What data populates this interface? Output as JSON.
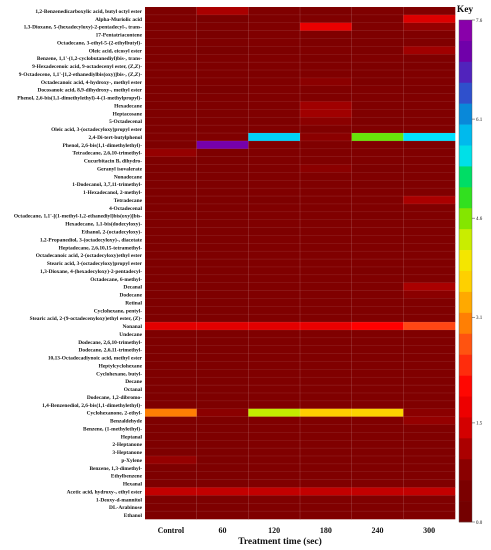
{
  "chart_data": {
    "type": "heatmap",
    "xlabel": "Treatment time (sec)",
    "ylabel": "",
    "legend_title": "Key",
    "legend_placement": "right",
    "scale": {
      "min": 0.0,
      "max": 7.6
    },
    "scale_ticks": [
      "7.6",
      "6.1",
      "4.6",
      "3.1",
      "1.5",
      "0.0"
    ],
    "scale_tick_values": [
      7.6,
      6.1,
      4.6,
      3.1,
      1.5,
      0.0
    ],
    "categories": [
      "Control",
      "60",
      "120",
      "180",
      "240",
      "300"
    ],
    "rows": [
      "1,2-Benzenedicarboxylic acid, butyl octyl ester",
      "Alpha-Muriolic acid",
      "1,3-Dioxane, 5-(hexadecyloxy)-2-pentadecyl-, trans-",
      "17-Pentatriacontene",
      "Octadecane, 3-ethyl-5-(2-ethylbutyl)-",
      "Oleic acid, eicosyl ester",
      "Benzene, 1,1'-(1,2-cyclobutanediyl)bis-, trans-",
      "9-Hexadecenoic acid, 9-octadecenyl ester, (Z,Z)-",
      "9-Octadecene, 1,1'-[1,2-ethanediylbis(oxy)]bis-, (Z,Z)-",
      "Octadecanoic acid, 4-hydroxy-, methyl ester",
      "Docosanoic acid, 8,9-dihydroxy-, methyl ester",
      "Phenol, 2,6-bis(1,1-dimethylethyl)-4-(1-methylpropyl)-",
      "Hexadecane",
      "Heptacosane",
      "5-Octadecenal",
      "Oleic acid, 3-(octadecyloxy)propyl ester",
      "2,4-Di-tert-butylphenol",
      "Phenol, 2,6-bis(1,1-dimethylethyl)-",
      "Tetradecane, 2,6,10-trimethyl-",
      "Cucurbitacin B, dihydro-",
      "Geranyl isovalerate",
      "Nonadecane",
      "1-Dodecanol, 3,7,11-trimethyl-",
      "1-Hexadecanol, 2-methyl-",
      "Tetradecane",
      "4-Octadecenal",
      "Octadecane, 1,1'-[(1-methyl-1,2-ethanediyl)bis(oxy)]bis-",
      "Hexadecane, 1,1-bis(dodecyloxy)-",
      "Ethanol, 2-(octadecyloxy)-",
      "1,2-Propanediol, 3-(octadecyloxy)-, diacetate",
      "Heptadecane, 2,6,10,15-tetramethyl-",
      "Octadecanoic acid, 2-(octadecyloxy)ethyl ester",
      "Stearic acid, 3-(octadecyloxy)propyl ester",
      "1,3-Dioxane, 4-(hexadecyloxy)-2-pentadecyl-",
      "Octadecane, 6-methyl-",
      "Decanal",
      "Dodecane",
      "Retinal",
      "Cyclohexane, pentyl-",
      "Stearic acid, 2-(9-octadecenyloxy)ethyl ester, (Z)-",
      "Nonanal",
      "Undecane",
      "Dodecane, 2,6,10-trimethyl-",
      "Dodecane, 2,6,11-trimethyl-",
      "10,13-Octadecadiynoic acid, methyl ester",
      "Heptylcyclohexane",
      "Cyclohexane, butyl-",
      "Decane",
      "Octanal",
      "Dodecane, 1,2-dibromo-",
      "1,4-Benzenediol, 2,6-bis(1,1-dimethylethyl)-",
      "Cyclohexanone, 2-ethyl-",
      "Benzaldehyde",
      "Benzene, (1-methylethyl)-",
      "Heptanal",
      "2-Heptanone",
      "3-Heptanone",
      "p-Xylene",
      "Benzene, 1,3-dimethyl-",
      "Ethylbenzene",
      "Hexanal",
      "Acetic acid, hydroxy-, ethyl ester",
      "1-Deoxy-d-mannitol",
      "DL-Arabinose",
      "Ethanol"
    ],
    "values": [
      [
        0.6,
        1.1,
        0.7,
        0.6,
        0.7,
        0.7
      ],
      [
        0.6,
        0.5,
        0.6,
        0.7,
        0.6,
        1.5
      ],
      [
        0.6,
        0.6,
        0.7,
        1.7,
        0.7,
        0.9
      ],
      [
        0.6,
        0.5,
        0.7,
        0.7,
        0.6,
        0.7
      ],
      [
        0.6,
        0.6,
        0.7,
        0.6,
        0.6,
        0.7
      ],
      [
        0.6,
        0.5,
        0.6,
        0.7,
        0.6,
        1.0
      ],
      [
        0.6,
        0.6,
        0.7,
        0.6,
        0.7,
        0.6
      ],
      [
        0.6,
        0.6,
        0.7,
        0.7,
        0.6,
        0.6
      ],
      [
        0.6,
        0.6,
        0.6,
        0.7,
        0.6,
        0.7
      ],
      [
        0.6,
        0.6,
        0.7,
        0.8,
        0.6,
        0.7
      ],
      [
        0.6,
        0.5,
        0.7,
        0.7,
        0.7,
        0.6
      ],
      [
        0.6,
        0.6,
        0.7,
        0.7,
        0.7,
        0.7
      ],
      [
        0.6,
        0.6,
        0.7,
        1.0,
        0.7,
        0.7
      ],
      [
        0.6,
        0.6,
        0.7,
        1.0,
        0.7,
        0.7
      ],
      [
        0.6,
        0.6,
        0.6,
        0.8,
        0.6,
        0.7
      ],
      [
        0.6,
        0.6,
        0.7,
        0.7,
        0.7,
        0.7
      ],
      [
        0.7,
        0.7,
        5.7,
        0.8,
        4.7,
        5.6
      ],
      [
        0.6,
        7.2,
        0.7,
        0.7,
        0.7,
        0.6
      ],
      [
        0.9,
        0.6,
        0.7,
        0.7,
        0.7,
        0.7
      ],
      [
        0.6,
        0.6,
        0.7,
        0.7,
        0.7,
        0.7
      ],
      [
        0.6,
        0.6,
        0.7,
        0.8,
        0.6,
        0.7
      ],
      [
        0.6,
        0.6,
        0.7,
        0.7,
        0.7,
        0.7
      ],
      [
        0.6,
        0.6,
        0.7,
        0.7,
        0.6,
        0.7
      ],
      [
        0.6,
        0.6,
        0.7,
        0.7,
        0.7,
        0.7
      ],
      [
        0.6,
        0.6,
        0.6,
        0.7,
        0.7,
        1.1
      ],
      [
        0.6,
        0.6,
        0.7,
        0.7,
        0.7,
        0.7
      ],
      [
        0.6,
        0.6,
        0.7,
        0.7,
        0.6,
        0.7
      ],
      [
        0.6,
        0.6,
        0.7,
        0.7,
        0.7,
        0.7
      ],
      [
        0.6,
        0.6,
        0.6,
        0.7,
        0.7,
        0.7
      ],
      [
        0.6,
        0.6,
        0.7,
        0.7,
        0.7,
        0.7
      ],
      [
        0.6,
        0.6,
        0.7,
        0.7,
        0.7,
        0.7
      ],
      [
        0.6,
        0.6,
        0.7,
        0.7,
        0.7,
        0.7
      ],
      [
        0.6,
        0.6,
        0.7,
        0.7,
        0.7,
        0.7
      ],
      [
        0.6,
        0.6,
        0.7,
        0.7,
        0.6,
        0.7
      ],
      [
        0.6,
        0.6,
        0.7,
        0.7,
        0.7,
        0.7
      ],
      [
        0.6,
        0.6,
        0.7,
        0.7,
        0.7,
        1.1
      ],
      [
        0.6,
        0.6,
        0.7,
        0.7,
        0.7,
        0.8
      ],
      [
        0.6,
        0.6,
        0.7,
        0.7,
        0.7,
        0.7
      ],
      [
        0.6,
        0.6,
        0.7,
        0.7,
        0.7,
        0.7
      ],
      [
        0.6,
        0.6,
        0.7,
        0.7,
        0.7,
        0.7
      ],
      [
        1.6,
        1.6,
        1.6,
        1.7,
        2.0,
        2.6
      ],
      [
        0.6,
        0.6,
        0.7,
        0.7,
        0.7,
        0.7
      ],
      [
        0.6,
        0.6,
        0.7,
        0.7,
        0.7,
        0.7
      ],
      [
        0.6,
        0.6,
        0.7,
        0.7,
        0.7,
        0.7
      ],
      [
        0.6,
        0.6,
        0.7,
        0.7,
        0.7,
        0.7
      ],
      [
        0.6,
        0.6,
        0.7,
        0.7,
        0.7,
        0.7
      ],
      [
        0.6,
        0.6,
        0.7,
        0.7,
        0.7,
        0.7
      ],
      [
        0.6,
        0.6,
        0.7,
        0.7,
        0.7,
        0.7
      ],
      [
        0.6,
        0.6,
        0.7,
        0.7,
        0.7,
        0.7
      ],
      [
        0.6,
        0.6,
        0.7,
        0.7,
        0.7,
        0.7
      ],
      [
        0.6,
        0.6,
        0.7,
        0.7,
        0.7,
        0.7
      ],
      [
        3.0,
        0.8,
        4.3,
        3.6,
        3.7,
        0.8
      ],
      [
        0.6,
        0.6,
        0.7,
        0.7,
        0.7,
        0.9
      ],
      [
        0.6,
        0.6,
        0.7,
        0.7,
        0.7,
        0.7
      ],
      [
        0.6,
        0.6,
        0.7,
        0.7,
        0.7,
        0.7
      ],
      [
        0.6,
        0.6,
        0.7,
        0.7,
        0.7,
        0.7
      ],
      [
        0.6,
        0.6,
        0.7,
        0.7,
        0.7,
        0.7
      ],
      [
        0.9,
        0.6,
        0.7,
        0.7,
        0.7,
        0.7
      ],
      [
        0.6,
        0.6,
        0.7,
        0.7,
        0.7,
        0.7
      ],
      [
        0.6,
        0.6,
        0.7,
        0.7,
        0.7,
        0.7
      ],
      [
        0.6,
        0.6,
        0.7,
        0.7,
        0.7,
        0.7
      ],
      [
        1.3,
        1.3,
        1.3,
        1.3,
        1.3,
        1.3
      ],
      [
        0.6,
        0.6,
        0.7,
        0.7,
        0.7,
        0.7
      ],
      [
        0.6,
        0.6,
        0.7,
        0.7,
        0.7,
        0.7
      ],
      [
        0.6,
        0.6,
        0.7,
        0.7,
        0.7,
        0.7
      ]
    ]
  }
}
